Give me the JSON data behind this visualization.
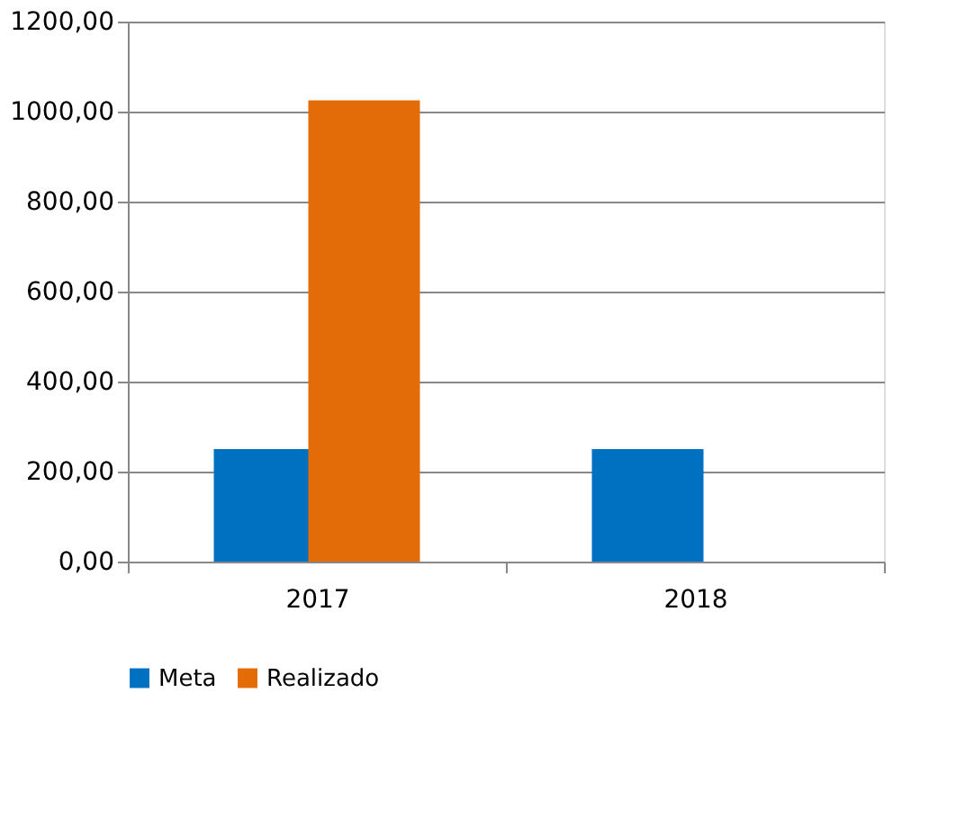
{
  "chart_data": {
    "type": "bar",
    "categories": [
      "2017",
      "2018"
    ],
    "series": [
      {
        "name": "Meta",
        "color": "#0070c0",
        "values": [
          250,
          250
        ]
      },
      {
        "name": "Realizado",
        "color": "#e36c09",
        "values": [
          1025,
          null
        ]
      }
    ],
    "ylim": [
      0,
      1200
    ],
    "yticks": [
      {
        "value": 0,
        "label": "0,00"
      },
      {
        "value": 200,
        "label": "200,00"
      },
      {
        "value": 400,
        "label": "400,00"
      },
      {
        "value": 600,
        "label": "600,00"
      },
      {
        "value": 800,
        "label": "800,00"
      },
      {
        "value": 1000,
        "label": "1000,00"
      },
      {
        "value": 1200,
        "label": "1200,00"
      }
    ],
    "grid": "y",
    "legend": "bottom"
  }
}
